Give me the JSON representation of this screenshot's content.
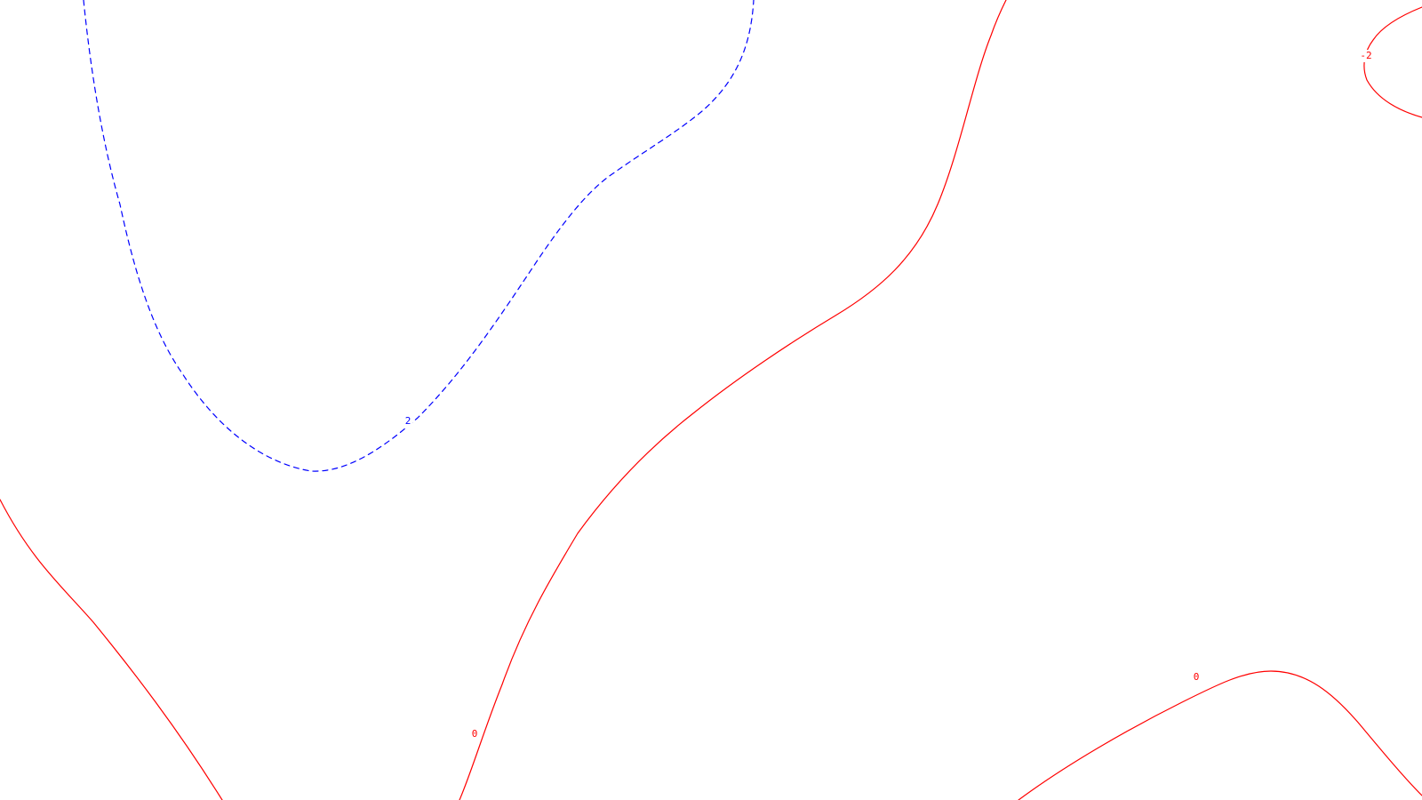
{
  "figure": {
    "type": "contour",
    "background": "#ffffff"
  },
  "styles": {
    "positive": {
      "color": "#0000ff",
      "dashed": true
    },
    "zero": {
      "color": "#ff0000",
      "dashed": false
    },
    "negative": {
      "color": "#ff0000",
      "dashed": false
    }
  },
  "contours": [
    {
      "id": "contour-level-2",
      "level": 2,
      "label": "2",
      "style": "positive"
    },
    {
      "id": "contour-level-0-left",
      "level": 0,
      "label": "",
      "style": "zero"
    },
    {
      "id": "contour-level-0-center",
      "level": 0,
      "label": "0",
      "style": "zero"
    },
    {
      "id": "contour-level-0-bottom-right",
      "level": 0,
      "label": "0",
      "style": "zero"
    },
    {
      "id": "contour-level-neg2",
      "level": -2,
      "label": "-2",
      "style": "negative"
    }
  ]
}
